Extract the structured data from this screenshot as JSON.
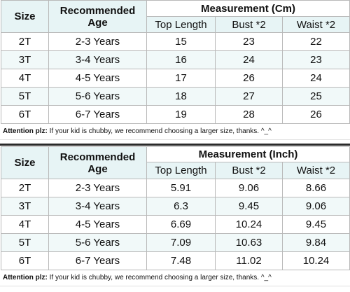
{
  "tables": [
    {
      "headers": {
        "size": "Size",
        "age": "Recommended Age",
        "measurement": "Measurement (Cm)",
        "top_length": "Top Length",
        "bust": "Bust *2",
        "waist": "Waist *2"
      },
      "rows": [
        {
          "size": "2T",
          "age": "2-3 Years",
          "top_length": "15",
          "bust": "23",
          "waist": "22"
        },
        {
          "size": "3T",
          "age": "3-4 Years",
          "top_length": "16",
          "bust": "24",
          "waist": "23"
        },
        {
          "size": "4T",
          "age": "4-5 Years",
          "top_length": "17",
          "bust": "26",
          "waist": "24"
        },
        {
          "size": "5T",
          "age": "5-6 Years",
          "top_length": "18",
          "bust": "27",
          "waist": "25"
        },
        {
          "size": "6T",
          "age": "6-7 Years",
          "top_length": "19",
          "bust": "28",
          "waist": "26"
        }
      ],
      "note_bold": "Attention plz:",
      "note_text": " If your kid is chubby, we recommend choosing a larger size, thanks. ^_^"
    },
    {
      "headers": {
        "size": "Size",
        "age": "Recommended Age",
        "measurement": "Measurement (Inch)",
        "top_length": "Top Length",
        "bust": "Bust *2",
        "waist": "Waist *2"
      },
      "rows": [
        {
          "size": "2T",
          "age": "2-3 Years",
          "top_length": "5.91",
          "bust": "9.06",
          "waist": "8.66"
        },
        {
          "size": "3T",
          "age": "3-4 Years",
          "top_length": "6.3",
          "bust": "9.45",
          "waist": "9.06"
        },
        {
          "size": "4T",
          "age": "4-5 Years",
          "top_length": "6.69",
          "bust": "10.24",
          "waist": "9.45"
        },
        {
          "size": "5T",
          "age": "5-6 Years",
          "top_length": "7.09",
          "bust": "10.63",
          "waist": "9.84"
        },
        {
          "size": "6T",
          "age": "6-7 Years",
          "top_length": "7.48",
          "bust": "11.02",
          "waist": "10.24"
        }
      ],
      "note_bold": "Attention plz:",
      "note_text": " If your kid is chubby, we recommend choosing a larger size, thanks. ^_^"
    }
  ]
}
